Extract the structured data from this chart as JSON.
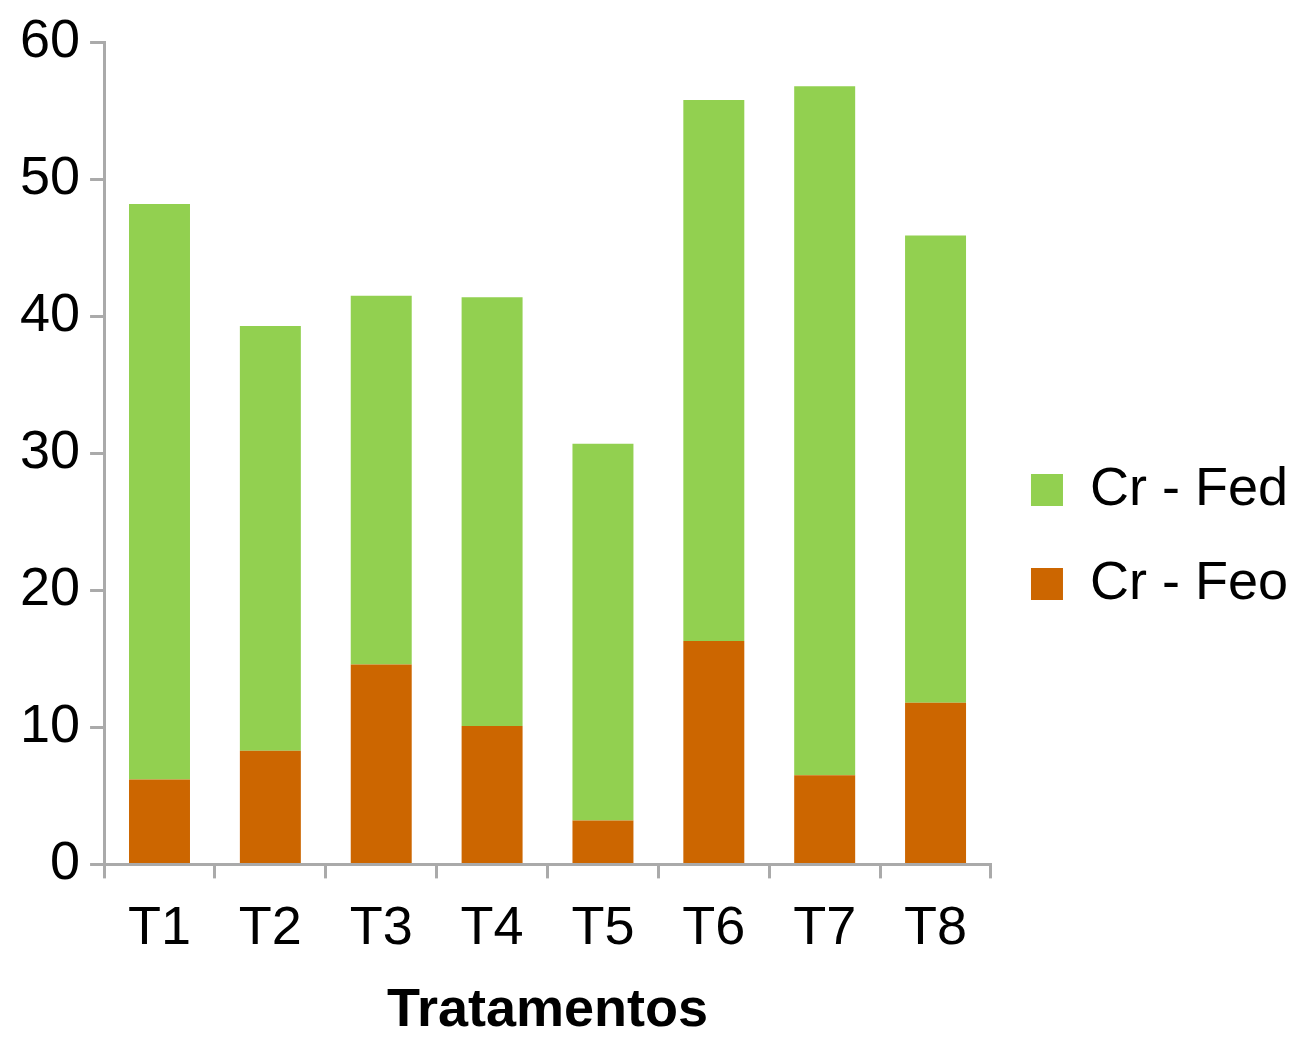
{
  "chart_data": {
    "type": "bar",
    "stacked": true,
    "categories": [
      "T1",
      "T2",
      "T3",
      "T4",
      "T5",
      "T6",
      "T7",
      "T8"
    ],
    "xlabel": "Tratamentos",
    "ylim": [
      0,
      60
    ],
    "yticks": [
      0,
      10,
      20,
      30,
      40,
      50,
      60
    ],
    "grid": false,
    "legend": "right",
    "series": [
      {
        "name": "Cr - Feo",
        "color": "#cc6600",
        "values": [
          6.2,
          8.3,
          14.6,
          10.1,
          3.2,
          16.3,
          6.5,
          11.8
        ]
      },
      {
        "name": "Cr - Fed",
        "color": "#92d050",
        "values": [
          42.0,
          31.0,
          26.9,
          31.3,
          27.5,
          39.5,
          50.3,
          34.1
        ]
      }
    ]
  }
}
